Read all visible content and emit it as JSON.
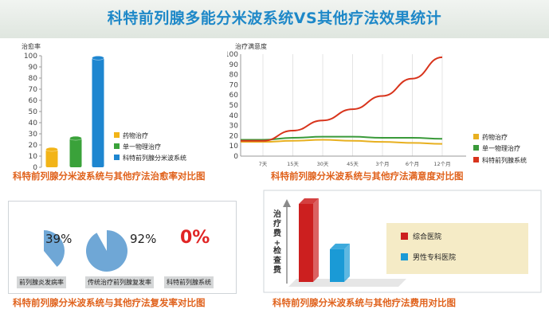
{
  "header": {
    "title": "科特前列腺多能分米波系统VS其他疗法效果统计"
  },
  "captions": {
    "cure": "科特前列腺分米波系统与其他疗法治愈率对比图",
    "satisfaction": "科特前列腺分米波系统与其他疗法满意度对比图",
    "relapse": "科特前列腺分米波系统与其他疗法复发率对比图",
    "cost": "科特前列腺分米波系统与其他疗法费用对比图"
  },
  "relapse": {
    "items": [
      {
        "label": "前列腺炎发病率",
        "value_text": "39%",
        "value": 39
      },
      {
        "label": "传统治疗前列腺复发率",
        "value_text": "92%",
        "value": 92
      },
      {
        "label": "科特前列腺系统",
        "value_text": "0%",
        "value": 0
      }
    ]
  },
  "chart_data": [
    {
      "type": "bar",
      "ylabel": "治愈率",
      "ylim": [
        0,
        100
      ],
      "yticks": [
        0,
        10,
        20,
        30,
        40,
        50,
        60,
        70,
        80,
        90,
        100
      ],
      "categories": [
        "药物治疗",
        "单一物理治疗",
        "科特前列腺分米波系统"
      ],
      "values": [
        16,
        26,
        98
      ],
      "colors": [
        "#f2b418",
        "#3aa23a",
        "#1e86d0"
      ],
      "legend": [
        "药物治疗",
        "单一物理治疗",
        "科特前列腺分米波系统"
      ]
    },
    {
      "type": "line",
      "ylabel": "治疗满意度",
      "ylim": [
        0,
        100
      ],
      "yticks": [
        0,
        10,
        20,
        30,
        40,
        50,
        60,
        70,
        80,
        90,
        100
      ],
      "x": [
        "7天",
        "15天",
        "30天",
        "45天",
        "3个月",
        "6个月",
        "12个月"
      ],
      "series": [
        {
          "name": "药物治疗",
          "color": "#e8b020",
          "values": [
            14,
            15,
            16,
            15,
            14,
            13,
            12
          ]
        },
        {
          "name": "单一物理治疗",
          "color": "#3a9a3a",
          "values": [
            16,
            18,
            19,
            19,
            18,
            18,
            17
          ]
        },
        {
          "name": "科特前列腺系统",
          "color": "#d8341c",
          "values": [
            15,
            25,
            35,
            46,
            59,
            76,
            97
          ]
        }
      ]
    },
    {
      "type": "bar",
      "ylabel": "治疗费+检查费",
      "categories": [
        "综合医院",
        "男性专科医院"
      ],
      "values": [
        100,
        42
      ],
      "colors": [
        "#cc1f1f",
        "#1a9ad6"
      ],
      "legend": [
        "综合医院",
        "男性专科医院"
      ]
    }
  ]
}
